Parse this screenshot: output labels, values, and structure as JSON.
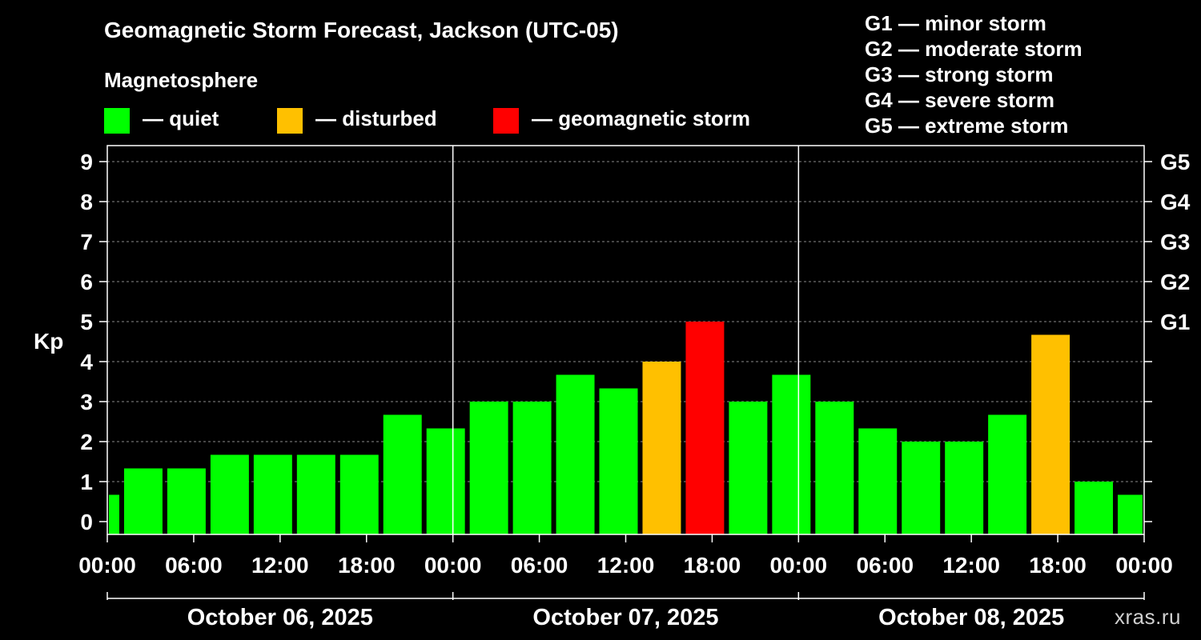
{
  "header": {
    "title": "Geomagnetic Storm Forecast, Jackson (UTC-05)",
    "subtitle": "Magnetosphere"
  },
  "legend": [
    {
      "label": "— quiet",
      "color": "#00ff00"
    },
    {
      "label": "— disturbed",
      "color": "#ffc000"
    },
    {
      "label": "— geomagnetic storm",
      "color": "#ff0000"
    }
  ],
  "storm_levels": [
    "G1 — minor storm",
    "G2 — moderate storm",
    "G3 — strong storm",
    "G4 — severe storm",
    "G5 — extreme storm"
  ],
  "credit": "xras.ru",
  "chart_data": {
    "type": "bar",
    "ylabel": "Kp",
    "ylim": [
      0,
      9
    ],
    "yticks": [
      "0",
      "1",
      "2",
      "3",
      "4",
      "5",
      "6",
      "7",
      "8",
      "9"
    ],
    "right_ticks": [
      {
        "kp": 5,
        "label": "G1"
      },
      {
        "kp": 6,
        "label": "G2"
      },
      {
        "kp": 7,
        "label": "G3"
      },
      {
        "kp": 8,
        "label": "G4"
      },
      {
        "kp": 9,
        "label": "G5"
      }
    ],
    "x_range_hours": [
      0,
      72
    ],
    "xtick_labels": [
      "00:00",
      "06:00",
      "12:00",
      "18:00",
      "00:00",
      "06:00",
      "12:00",
      "18:00",
      "00:00",
      "06:00",
      "12:00",
      "18:00",
      "00:00"
    ],
    "dates": [
      "October 06, 2025",
      "October 07, 2025",
      "October 08, 2025"
    ],
    "grid": "horizontal dashed",
    "bars": [
      {
        "start_h": 0,
        "end_h": 1,
        "kp": 0.67,
        "status": "quiet"
      },
      {
        "start_h": 1,
        "end_h": 4,
        "kp": 1.33,
        "status": "quiet"
      },
      {
        "start_h": 4,
        "end_h": 7,
        "kp": 1.33,
        "status": "quiet"
      },
      {
        "start_h": 7,
        "end_h": 10,
        "kp": 1.67,
        "status": "quiet"
      },
      {
        "start_h": 10,
        "end_h": 13,
        "kp": 1.67,
        "status": "quiet"
      },
      {
        "start_h": 13,
        "end_h": 16,
        "kp": 1.67,
        "status": "quiet"
      },
      {
        "start_h": 16,
        "end_h": 19,
        "kp": 1.67,
        "status": "quiet"
      },
      {
        "start_h": 19,
        "end_h": 22,
        "kp": 2.67,
        "status": "quiet"
      },
      {
        "start_h": 22,
        "end_h": 25,
        "kp": 2.33,
        "status": "quiet"
      },
      {
        "start_h": 25,
        "end_h": 28,
        "kp": 3.0,
        "status": "quiet"
      },
      {
        "start_h": 28,
        "end_h": 31,
        "kp": 3.0,
        "status": "quiet"
      },
      {
        "start_h": 31,
        "end_h": 34,
        "kp": 3.67,
        "status": "quiet"
      },
      {
        "start_h": 34,
        "end_h": 37,
        "kp": 3.33,
        "status": "quiet"
      },
      {
        "start_h": 37,
        "end_h": 40,
        "kp": 4.0,
        "status": "disturbed"
      },
      {
        "start_h": 40,
        "end_h": 43,
        "kp": 5.0,
        "status": "storm"
      },
      {
        "start_h": 43,
        "end_h": 46,
        "kp": 3.0,
        "status": "quiet"
      },
      {
        "start_h": 46,
        "end_h": 49,
        "kp": 3.67,
        "status": "quiet"
      },
      {
        "start_h": 49,
        "end_h": 52,
        "kp": 3.0,
        "status": "quiet"
      },
      {
        "start_h": 52,
        "end_h": 55,
        "kp": 2.33,
        "status": "quiet"
      },
      {
        "start_h": 55,
        "end_h": 58,
        "kp": 2.0,
        "status": "quiet"
      },
      {
        "start_h": 58,
        "end_h": 61,
        "kp": 2.0,
        "status": "quiet"
      },
      {
        "start_h": 61,
        "end_h": 64,
        "kp": 2.67,
        "status": "quiet"
      },
      {
        "start_h": 64,
        "end_h": 67,
        "kp": 4.67,
        "status": "disturbed"
      },
      {
        "start_h": 67,
        "end_h": 70,
        "kp": 1.0,
        "status": "quiet"
      },
      {
        "start_h": 70,
        "end_h": 72,
        "kp": 0.67,
        "status": "quiet"
      }
    ],
    "status_colors": {
      "quiet": "#00ff00",
      "disturbed": "#ffc000",
      "storm": "#ff0000"
    }
  }
}
